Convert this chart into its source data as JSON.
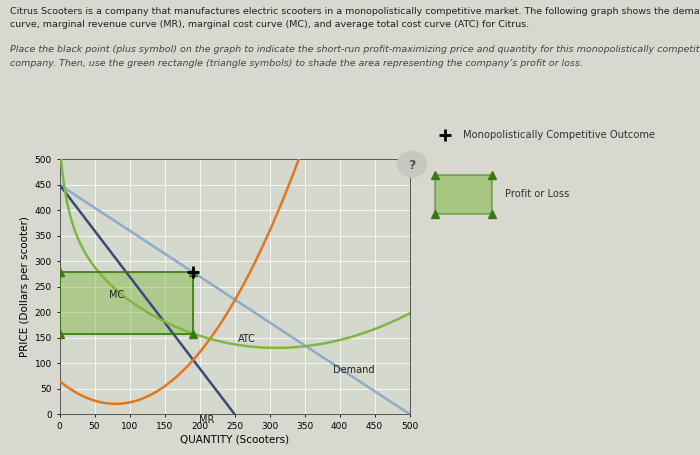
{
  "title_line1": "Citrus Scooters is a company that manufactures electric scooters in a monopolistically competitive market. The following graph shows the demand",
  "title_line2": "curve, marginal revenue curve (MR), marginal cost curve (MC), and average total cost curve (ATC) for Citrus.",
  "subtitle_line1": "Place the black point (plus symbol) on the graph to indicate the short-run profit-maximizing price and quantity for this monopolistically competitive",
  "subtitle_line2": "company. Then, use the green rectangle (triangle symbols) to shade the area representing the company’s profit or loss.",
  "xlabel": "QUANTITY (Scooters)",
  "ylabel": "PRICE (Dollars per scooter)",
  "xlim": [
    0,
    500
  ],
  "ylim": [
    0,
    500
  ],
  "xticks": [
    0,
    50,
    100,
    150,
    200,
    250,
    300,
    350,
    400,
    450,
    500
  ],
  "yticks": [
    0,
    50,
    100,
    150,
    200,
    250,
    300,
    350,
    400,
    450,
    500
  ],
  "demand_color": "#8eacc8",
  "mr_color": "#3a4a7a",
  "mc_color": "#e07820",
  "atc_color": "#7db842",
  "profit_fill_color": "#7db842",
  "profit_fill_alpha": 0.45,
  "legend_outcome_label": "Monopolistically Competitive Outcome",
  "legend_profit_label": "Profit or Loss",
  "bg_color": "#d8d8d0",
  "plot_bg_color": "#d5d8cc",
  "grid_color": "#ffffff"
}
